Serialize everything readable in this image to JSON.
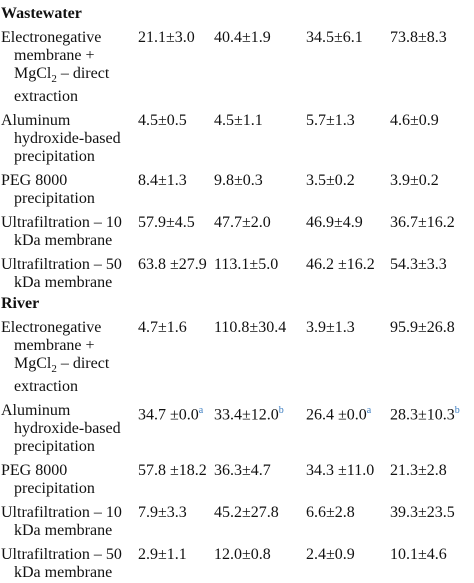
{
  "sections": [
    {
      "title": "Wastewater",
      "rows": [
        {
          "method": [
            "Electronegative membrane + MgCl",
            "2",
            " – direct extraction"
          ],
          "values": [
            "21.1±3.0",
            "40.4±1.9",
            "34.5±6.1",
            "73.8±8.3"
          ]
        },
        {
          "method": [
            "Aluminum hydroxide-based precipitation"
          ],
          "values": [
            "4.5±0.5",
            "4.5±1.1",
            "5.7±1.3",
            "4.6±0.9"
          ]
        },
        {
          "method": [
            "PEG 8000 precipitation"
          ],
          "values": [
            "8.4±1.3",
            "9.8±0.3",
            "3.5±0.2",
            "3.9±0.2"
          ]
        },
        {
          "method": [
            "Ultrafiltration – 10 kDa membrane"
          ],
          "values": [
            "57.9±4.5",
            "47.7±2.0",
            "46.9±4.9",
            "36.7±16.2"
          ]
        },
        {
          "method": [
            "Ultrafiltration – 50 kDa membrane"
          ],
          "values": [
            "63.8 ±27.9",
            "113.1±5.0",
            "46.2 ±16.2",
            "54.3±3.3"
          ]
        }
      ]
    },
    {
      "title": "River",
      "rows": [
        {
          "method": [
            "Electronegative membrane + MgCl",
            "2",
            " – direct extraction"
          ],
          "values": [
            "4.7±1.6",
            "110.8±30.4",
            "3.9±1.3",
            "95.9±26.8"
          ]
        },
        {
          "method": [
            "Aluminum hydroxide-based precipitation"
          ],
          "values": [
            {
              "text": "34.7 ±0.0",
              "note": "a"
            },
            {
              "text": "33.4±12.0",
              "note": "b"
            },
            {
              "text": "26.4 ±0.0",
              "note": "a"
            },
            {
              "text": "28.3±10.3",
              "note": "b"
            }
          ]
        },
        {
          "method": [
            "PEG 8000 precipitation"
          ],
          "values": [
            "57.8 ±18.2",
            "36.3±4.7",
            "34.3 ±11.0",
            "21.3±2.8"
          ]
        },
        {
          "method": [
            "Ultrafiltration – 10 kDa membrane"
          ],
          "values": [
            "7.9±3.3",
            "45.2±27.8",
            "6.6±2.8",
            "39.3±23.5"
          ]
        },
        {
          "method": [
            "Ultrafiltration – 50 kDa membrane"
          ],
          "values": [
            "2.9±1.1",
            "12.0±0.8",
            "2.4±0.9",
            "10.1±4.6"
          ]
        }
      ]
    }
  ]
}
